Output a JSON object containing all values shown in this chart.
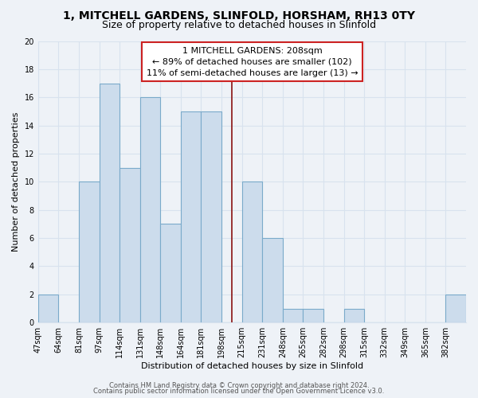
{
  "title_line1": "1, MITCHELL GARDENS, SLINFOLD, HORSHAM, RH13 0TY",
  "title_line2": "Size of property relative to detached houses in Slinfold",
  "xlabel": "Distribution of detached houses by size in Slinfold",
  "ylabel": "Number of detached properties",
  "bin_labels": [
    "47sqm",
    "64sqm",
    "81sqm",
    "97sqm",
    "114sqm",
    "131sqm",
    "148sqm",
    "164sqm",
    "181sqm",
    "198sqm",
    "215sqm",
    "231sqm",
    "248sqm",
    "265sqm",
    "282sqm",
    "298sqm",
    "315sqm",
    "332sqm",
    "349sqm",
    "365sqm",
    "382sqm"
  ],
  "counts": [
    2,
    0,
    10,
    17,
    11,
    16,
    7,
    15,
    15,
    0,
    10,
    6,
    1,
    1,
    0,
    1,
    0,
    0,
    0,
    0,
    2
  ],
  "bar_color": "#ccdcec",
  "bar_edge_color": "#7aaaca",
  "subject_bin_index": 9.5,
  "annotation_line1": "1 MITCHELL GARDENS: 208sqm",
  "annotation_line2": "← 89% of detached houses are smaller (102)",
  "annotation_line3": "11% of semi-detached houses are larger (13) →",
  "annotation_box_color": "#ffffff",
  "annotation_box_edge": "#cc2222",
  "vline_color": "#881111",
  "ylim": [
    0,
    20
  ],
  "yticks": [
    0,
    2,
    4,
    6,
    8,
    10,
    12,
    14,
    16,
    18,
    20
  ],
  "footer_line1": "Contains HM Land Registry data © Crown copyright and database right 2024.",
  "footer_line2": "Contains public sector information licensed under the Open Government Licence v3.0.",
  "background_color": "#eef2f7",
  "grid_color": "#d8e2ee",
  "title_fontsize": 10,
  "subtitle_fontsize": 9,
  "axis_label_fontsize": 8,
  "tick_fontsize": 7,
  "annotation_fontsize": 8,
  "footer_fontsize": 6
}
